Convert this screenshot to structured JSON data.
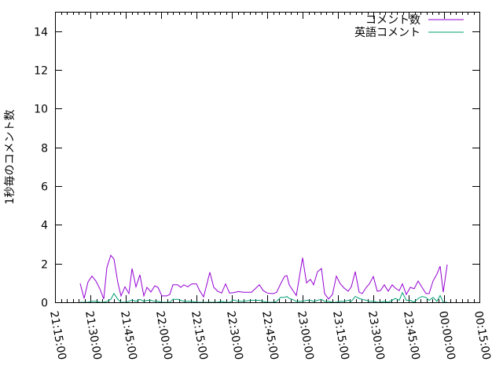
{
  "chart_data": {
    "type": "line",
    "title": "",
    "xlabel": "",
    "ylabel": "1秒毎のコメント数",
    "xlim": [
      "21:15:00",
      "00:15:00"
    ],
    "ylim": [
      0,
      15
    ],
    "x_tick_labels": [
      "21:15:00",
      "21:30:00",
      "21:45:00",
      "22:00:00",
      "22:15:00",
      "22:30:00",
      "22:45:00",
      "23:00:00",
      "23:15:00",
      "23:30:00",
      "23:45:00",
      "00:00:00",
      "00:15:00"
    ],
    "y_tick_labels": [
      "0",
      "2",
      "4",
      "6",
      "8",
      "10",
      "12",
      "14"
    ],
    "grid": false,
    "legend_position": "top-right",
    "x": [
      "21:25:40",
      "21:27:20",
      "21:29:00",
      "21:30:40",
      "21:32:20",
      "21:34:00",
      "21:35:40",
      "21:37:00",
      "21:38:40",
      "21:40:00",
      "21:41:40",
      "21:43:00",
      "21:44:40",
      "21:46:20",
      "21:47:40",
      "21:49:20",
      "21:51:00",
      "21:52:40",
      "21:54:00",
      "21:55:40",
      "21:57:20",
      "21:58:40",
      "22:00:20",
      "22:02:20",
      "22:03:40",
      "22:05:00",
      "22:07:00",
      "22:08:20",
      "22:09:40",
      "22:11:20",
      "22:13:00",
      "22:15:00",
      "22:16:20",
      "22:18:00",
      "22:19:20",
      "22:20:40",
      "22:22:20",
      "22:24:00",
      "22:25:40",
      "22:27:20",
      "22:29:00",
      "22:30:40",
      "22:32:40",
      "22:35:00",
      "22:38:20",
      "22:41:40",
      "22:43:20",
      "22:45:00",
      "22:46:40",
      "22:47:40",
      "22:49:00",
      "22:50:40",
      "22:52:20",
      "22:53:20",
      "22:54:20",
      "22:55:40",
      "22:57:20",
      "23:00:00",
      "23:01:40",
      "23:03:20",
      "23:04:40",
      "23:06:20",
      "23:08:00",
      "23:09:20",
      "23:11:00",
      "23:12:40",
      "23:14:20",
      "23:16:00",
      "23:17:40",
      "23:19:20",
      "23:20:40",
      "23:22:20",
      "23:24:00",
      "23:25:20",
      "23:27:00",
      "23:28:20",
      "23:30:00",
      "23:31:40",
      "23:33:00",
      "23:34:40",
      "23:36:20",
      "23:38:00",
      "23:39:20",
      "23:41:00",
      "23:42:20",
      "23:44:00",
      "23:45:40",
      "23:47:20",
      "23:49:00",
      "23:50:40",
      "23:52:20",
      "23:53:40",
      "23:55:20",
      "23:57:00",
      "23:58:20",
      "23:59:40",
      "00:01:20"
    ],
    "series": [
      {
        "name": "コメント数",
        "color": "#9400d3",
        "values": [
          0.97,
          0.2,
          1.05,
          1.35,
          1.1,
          0.7,
          0.17,
          1.8,
          2.43,
          2.23,
          1.0,
          0.33,
          0.8,
          0.45,
          1.74,
          0.8,
          1.42,
          0.33,
          0.77,
          0.53,
          0.85,
          0.77,
          0.33,
          0.33,
          0.4,
          0.9,
          0.9,
          0.77,
          0.9,
          0.8,
          0.95,
          0.95,
          0.6,
          0.28,
          0.9,
          1.55,
          0.77,
          0.57,
          0.48,
          0.95,
          0.48,
          0.5,
          0.55,
          0.52,
          0.52,
          0.9,
          0.6,
          0.48,
          0.45,
          0.45,
          0.52,
          0.95,
          1.33,
          1.38,
          0.9,
          0.65,
          0.35,
          2.3,
          1.0,
          1.18,
          0.9,
          1.58,
          1.74,
          0.45,
          0.17,
          0.4,
          1.35,
          0.95,
          0.73,
          0.57,
          0.8,
          1.58,
          0.52,
          0.45,
          0.77,
          0.95,
          1.33,
          0.57,
          0.6,
          0.9,
          0.57,
          0.9,
          0.73,
          0.6,
          0.95,
          0.4,
          0.77,
          0.7,
          1.1,
          0.77,
          0.45,
          0.45,
          1.1,
          1.46,
          1.86,
          0.52,
          1.95
        ]
      },
      {
        "name": "英語コメント",
        "color": "#009e73",
        "values": [
          0,
          0,
          0,
          0.05,
          0.05,
          0,
          0,
          0.05,
          0.15,
          0.45,
          0.15,
          0,
          0,
          0.05,
          0.12,
          0.05,
          0.15,
          0.05,
          0.1,
          0.1,
          0.05,
          0.05,
          0,
          0,
          0,
          0.15,
          0.15,
          0.1,
          0.05,
          0.05,
          0.05,
          0,
          0,
          0,
          0,
          0,
          0,
          0,
          0.05,
          0,
          0,
          0.12,
          0.05,
          0.05,
          0.1,
          0.1,
          0.05,
          0,
          0,
          0,
          0.05,
          0.25,
          0.25,
          0.3,
          0.2,
          0.15,
          0.05,
          0.05,
          0.1,
          0.1,
          0.05,
          0.1,
          0.15,
          0.05,
          0.05,
          0,
          0,
          0.05,
          0.05,
          0.1,
          0.05,
          0.3,
          0.2,
          0.15,
          0.1,
          0.05,
          0.05,
          0,
          0,
          0.05,
          0,
          0.1,
          0.2,
          0.1,
          0.5,
          0.1,
          0.1,
          0,
          0.2,
          0.3,
          0.25,
          0.1,
          0.25,
          0.05,
          0.35,
          0,
          0
        ]
      }
    ]
  }
}
